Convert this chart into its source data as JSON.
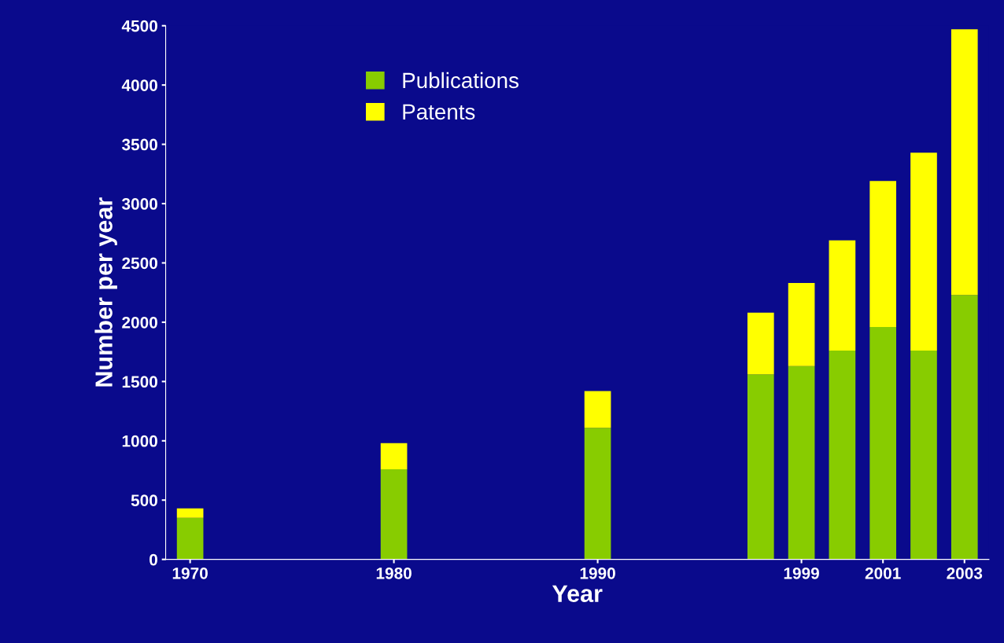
{
  "chart_data": {
    "type": "bar",
    "stacked": true,
    "xlabel": "Year",
    "ylabel": "Number per year",
    "categories": [
      "1970",
      null,
      null,
      null,
      null,
      "1980",
      null,
      null,
      null,
      null,
      "1990",
      null,
      null,
      null,
      null,
      "1999",
      null,
      "2001",
      null,
      "2003"
    ],
    "series": [
      {
        "name": "Publications",
        "color": "#88cc00",
        "values": [
          350,
          null,
          null,
          null,
          null,
          760,
          null,
          null,
          null,
          null,
          1110,
          null,
          null,
          null,
          1560,
          1630,
          1760,
          1960,
          1760,
          2230
        ]
      },
      {
        "name": "Patents",
        "color": "#ffff00",
        "values": [
          80,
          null,
          null,
          null,
          null,
          220,
          null,
          null,
          null,
          null,
          310,
          null,
          null,
          null,
          520,
          700,
          930,
          1230,
          1670,
          2240
        ]
      }
    ],
    "ylim": [
      0,
      4500
    ],
    "yticks": [
      0,
      500,
      1000,
      1500,
      2000,
      2500,
      3000,
      3500,
      4000,
      4500
    ],
    "grid": false,
    "legend": "top left"
  }
}
